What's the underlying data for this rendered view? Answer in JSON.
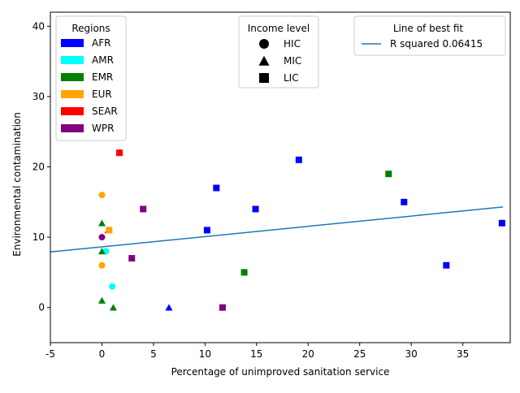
{
  "chart_data": {
    "type": "scatter",
    "xlabel": "Percentage of unimproved sanitation service",
    "ylabel": "Environmental contamination",
    "xlim": [
      -5,
      39.6
    ],
    "ylim": [
      -5,
      42
    ],
    "xticks": [
      -5,
      0,
      5,
      10,
      15,
      20,
      25,
      30,
      35
    ],
    "yticks": [
      0,
      10,
      20,
      30,
      40
    ],
    "grid": false,
    "regions": [
      {
        "name": "AFR",
        "color": "#0000ff"
      },
      {
        "name": "AMR",
        "color": "#00ffff"
      },
      {
        "name": "EMR",
        "color": "#008000"
      },
      {
        "name": "EUR",
        "color": "#ffa500"
      },
      {
        "name": "SEAR",
        "color": "#ff0000"
      },
      {
        "name": "WPR",
        "color": "#800080"
      }
    ],
    "income_levels": [
      {
        "name": "HIC",
        "marker": "circle"
      },
      {
        "name": "MIC",
        "marker": "triangle"
      },
      {
        "name": "LIC",
        "marker": "square"
      }
    ],
    "legends": {
      "regions_title": "Regions",
      "income_title": "Income level",
      "fit_title": "Line of best fit",
      "fit_label": "R squared 0.06415"
    },
    "fit_line": {
      "x": [
        -5,
        38.9
      ],
      "y": [
        7.9,
        14.3
      ],
      "color": "#1f77b4"
    },
    "points": [
      {
        "x": 0,
        "y": 16,
        "region": "EUR",
        "income": "HIC"
      },
      {
        "x": 0,
        "y": 6,
        "region": "EUR",
        "income": "HIC"
      },
      {
        "x": 0,
        "y": 10,
        "region": "WPR",
        "income": "HIC"
      },
      {
        "x": 0.4,
        "y": 8,
        "region": "AMR",
        "income": "HIC"
      },
      {
        "x": 1.0,
        "y": 3,
        "region": "AMR",
        "income": "HIC"
      },
      {
        "x": 0,
        "y": 12,
        "region": "EMR",
        "income": "MIC"
      },
      {
        "x": 0,
        "y": 8,
        "region": "EMR",
        "income": "MIC"
      },
      {
        "x": 0,
        "y": 1,
        "region": "EMR",
        "income": "MIC"
      },
      {
        "x": 1.1,
        "y": 0,
        "region": "EMR",
        "income": "MIC"
      },
      {
        "x": 0.6,
        "y": 11,
        "region": "SEAR",
        "income": "MIC"
      },
      {
        "x": 6.5,
        "y": 0,
        "region": "AFR",
        "income": "MIC"
      },
      {
        "x": 1.7,
        "y": 22,
        "region": "SEAR",
        "income": "LIC"
      },
      {
        "x": 0.7,
        "y": 11,
        "region": "EUR",
        "income": "LIC"
      },
      {
        "x": 2.9,
        "y": 7,
        "region": "WPR",
        "income": "LIC"
      },
      {
        "x": 4.0,
        "y": 14,
        "region": "WPR",
        "income": "LIC"
      },
      {
        "x": 10.2,
        "y": 11,
        "region": "AFR",
        "income": "LIC"
      },
      {
        "x": 11.1,
        "y": 17,
        "region": "AFR",
        "income": "LIC"
      },
      {
        "x": 11.7,
        "y": 0,
        "region": "WPR",
        "income": "LIC"
      },
      {
        "x": 13.8,
        "y": 5,
        "region": "EMR",
        "income": "LIC"
      },
      {
        "x": 14.9,
        "y": 14,
        "region": "AFR",
        "income": "LIC"
      },
      {
        "x": 19.1,
        "y": 21,
        "region": "AFR",
        "income": "LIC"
      },
      {
        "x": 27.8,
        "y": 19,
        "region": "EMR",
        "income": "LIC"
      },
      {
        "x": 29.3,
        "y": 15,
        "region": "AFR",
        "income": "LIC"
      },
      {
        "x": 33.4,
        "y": 6,
        "region": "AFR",
        "income": "LIC"
      },
      {
        "x": 38.8,
        "y": 12,
        "region": "AFR",
        "income": "LIC"
      }
    ]
  }
}
